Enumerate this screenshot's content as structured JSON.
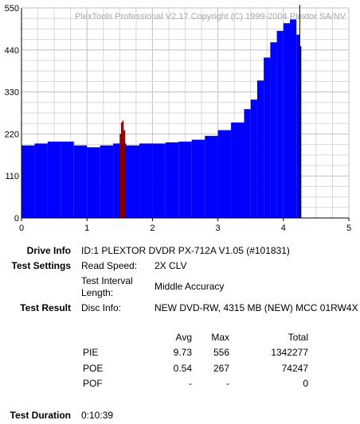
{
  "chart_data": {
    "type": "bar",
    "watermark": "PlexTools Professional V2.17 Copyright (C) 1999-2004 Plextor SA/NV",
    "xlim": [
      0,
      5
    ],
    "ylim": [
      0,
      550
    ],
    "x_ticks": [
      "0",
      "1",
      "2",
      "3",
      "4",
      "5"
    ],
    "y_ticks": [
      "0",
      "110",
      "220",
      "330",
      "440",
      "550"
    ],
    "grid": true,
    "series": [
      {
        "color": "#0000ff",
        "x": [
          0.0,
          0.2,
          0.4,
          0.6,
          0.8,
          1.0,
          1.2,
          1.4,
          1.6,
          1.8,
          2.0,
          2.2,
          2.4,
          2.6,
          2.8,
          3.0,
          3.2,
          3.4,
          3.5,
          3.6,
          3.7,
          3.8,
          3.9,
          4.0,
          4.1,
          4.2,
          4.25
        ],
        "values": [
          190,
          195,
          200,
          200,
          190,
          185,
          190,
          195,
          190,
          195,
          195,
          198,
          200,
          205,
          215,
          230,
          250,
          285,
          310,
          360,
          420,
          460,
          490,
          510,
          520,
          480,
          450
        ]
      },
      {
        "color": "#800000",
        "x": [
          1.5,
          1.52,
          1.54,
          1.56
        ],
        "values": [
          220,
          250,
          255,
          230
        ]
      }
    ],
    "end_marker_x": 4.25
  },
  "info": {
    "drive_info_label": "Drive Info",
    "drive_info_value": "ID:1 PLEXTOR DVDR PX-712A V1.05 (#101831)",
    "test_settings_label": "Test Settings",
    "read_speed_label": "Read Speed:",
    "read_speed_value": "2X CLV",
    "interval_label_1": "Test Interval",
    "interval_label_2": "Length:",
    "interval_value": "Middle Accuracy",
    "test_result_label": "Test Result",
    "disc_info_label": "Disc Info:",
    "disc_info_value": "NEW DVD-RW, 4315 MB (NEW) MCC 01RW4X",
    "col_avg": "Avg",
    "col_max": "Max",
    "col_total": "Total",
    "rows": [
      {
        "name": "PIE",
        "avg": "9.73",
        "max": "556",
        "total": "1342277"
      },
      {
        "name": "POE",
        "avg": "0.54",
        "max": "267",
        "total": "74247"
      },
      {
        "name": "POF",
        "avg": "-",
        "max": "-",
        "total": "0"
      }
    ],
    "duration_label": "Test Duration",
    "duration_value": "0:10:39"
  }
}
